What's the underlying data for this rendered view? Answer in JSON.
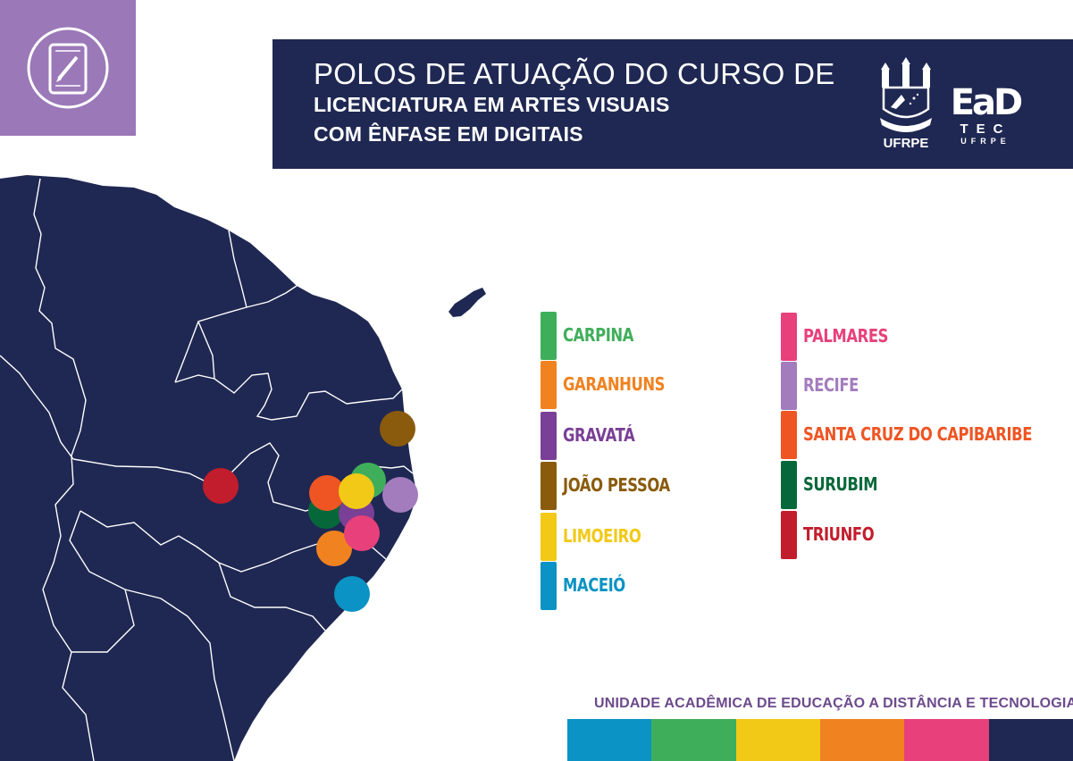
{
  "header": {
    "line1": "POLOS DE ATUAÇÃO DO CURSO DE",
    "line2": "LICENCIATURA EM ARTES VISUAIS",
    "line3": "COM ÊNFASE EM DIGITAIS",
    "ufrpe_label": "UFRPE",
    "ead_mark": "EaD",
    "ead_tec": "TEC",
    "ead_sub": "UFRPE"
  },
  "icon": {
    "name": "tablet-pencil-icon",
    "bg": "#9b78b8"
  },
  "legend": [
    {
      "name": "CARPINA",
      "color": "#3fae5a"
    },
    {
      "name": "GARANHUNS",
      "color": "#f08220"
    },
    {
      "name": "GRAVATÁ",
      "color": "#7a3f96"
    },
    {
      "name": "JOÃO PESSOA",
      "color": "#8a5b0c"
    },
    {
      "name": "LIMOEIRO",
      "color": "#f2c916"
    },
    {
      "name": "MACEIÓ",
      "color": "#0a93c4"
    },
    {
      "name": "PALMARES",
      "color": "#e8407a"
    },
    {
      "name": "RECIFE",
      "color": "#a37cbd"
    },
    {
      "name": "SANTA CRUZ DO CAPIBARIBE",
      "color": "#ee5523"
    },
    {
      "name": "SURUBIM",
      "color": "#06683a"
    },
    {
      "name": "TRIUNFO",
      "color": "#c21d2c"
    }
  ],
  "footer": {
    "text": "UNIDADE ACADÊMICA DE EDUCAÇÃO A DISTÂNCIA E TECNOLOGIA",
    "bar_colors": [
      "#0a93c4",
      "#3fae5a",
      "#f2c916",
      "#f08220",
      "#e8407a",
      "#1f2852"
    ]
  },
  "map": {
    "land_color": "#1f2852",
    "border_color": "#ffffff"
  }
}
